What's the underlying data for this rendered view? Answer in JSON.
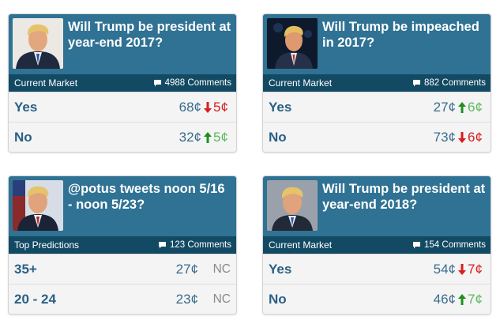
{
  "cards": [
    {
      "title": "Will Trump be president at year-end 2017?",
      "bar_label": "Current Market",
      "comments": "4988 Comments",
      "rows": [
        {
          "label": "Yes",
          "price": "68¢",
          "change": "5¢",
          "direction": "down"
        },
        {
          "label": "No",
          "price": "32¢",
          "change": "5¢",
          "direction": "up"
        }
      ]
    },
    {
      "title": "Will Trump be impeached in 2017?",
      "bar_label": "Current Market",
      "comments": "882 Comments",
      "rows": [
        {
          "label": "Yes",
          "price": "27¢",
          "change": "6¢",
          "direction": "up"
        },
        {
          "label": "No",
          "price": "73¢",
          "change": "6¢",
          "direction": "down"
        }
      ]
    },
    {
      "title": "@potus tweets noon 5/16 - noon 5/23?",
      "bar_label": "Top Predictions",
      "comments": "123 Comments",
      "rows": [
        {
          "label": "35+",
          "price": "27¢",
          "change": "NC",
          "direction": "none"
        },
        {
          "label": "20 - 24",
          "price": "23¢",
          "change": "NC",
          "direction": "none"
        }
      ]
    },
    {
      "title": "Will Trump be president at year-end 2018?",
      "bar_label": "Current Market",
      "comments": "154 Comments",
      "rows": [
        {
          "label": "Yes",
          "price": "54¢",
          "change": "7¢",
          "direction": "down"
        },
        {
          "label": "No",
          "price": "46¢",
          "change": "7¢",
          "direction": "up"
        }
      ]
    }
  ],
  "colors": {
    "header_blue": "#2f7294",
    "bar_navy": "#134a63",
    "down_red": "#d81e1e",
    "up_green": "#5cb85c",
    "option_blue": "#2a6186"
  },
  "icons": {
    "comment": "speech-bubble-icon",
    "up": "arrow-up-icon",
    "down": "arrow-down-icon"
  }
}
